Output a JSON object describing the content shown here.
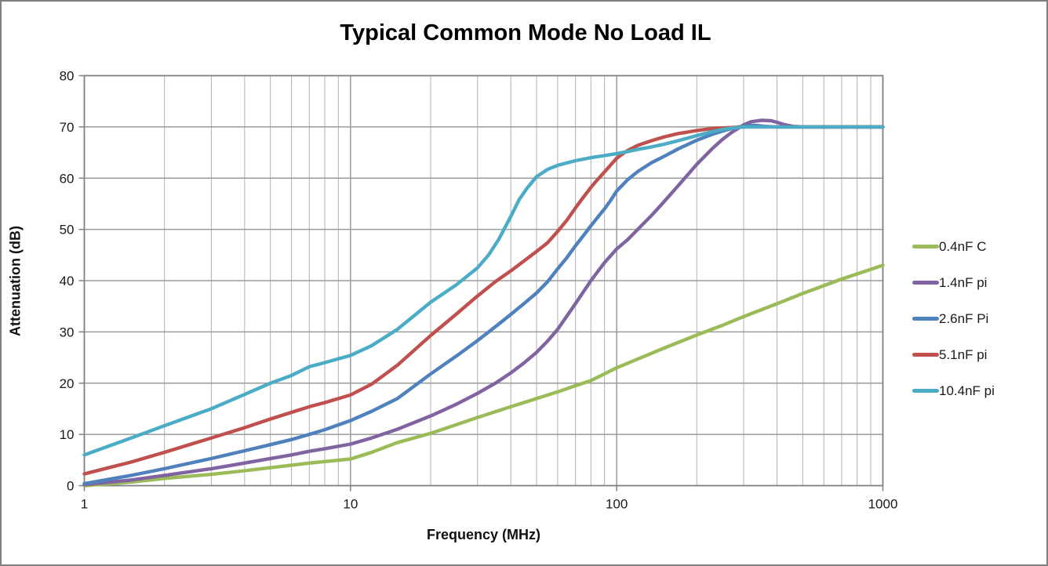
{
  "chart_data": {
    "type": "line",
    "title": "Typical Common Mode No Load IL",
    "xlabel": "Frequency (MHz)",
    "ylabel": "Attenuation (dB)",
    "x_scale": "log",
    "xlim": [
      1,
      1000
    ],
    "ylim": [
      0,
      80
    ],
    "x_ticks": [
      1,
      10,
      100,
      1000
    ],
    "y_ticks": [
      0,
      10,
      20,
      30,
      40,
      50,
      60,
      70,
      80
    ],
    "grid": "horizontal major every 10 dB; vertical log minor gridlines on",
    "legend_position": "right",
    "colors": {
      "plot_border": "#808080",
      "grid_major": "#9b9b9b",
      "grid_minor": "#b2b2b2",
      "tick_text": "#1a1a1a"
    },
    "series": [
      {
        "name": "0.4nF C",
        "color": "#9BBB59",
        "points": [
          [
            1,
            0
          ],
          [
            1.5,
            0.7
          ],
          [
            2,
            1.4
          ],
          [
            3,
            2.2
          ],
          [
            4,
            2.9
          ],
          [
            5,
            3.5
          ],
          [
            6,
            4.0
          ],
          [
            7,
            4.4
          ],
          [
            8,
            4.7
          ],
          [
            10,
            5.2
          ],
          [
            12,
            6.5
          ],
          [
            15,
            8.4
          ],
          [
            20,
            10.2
          ],
          [
            25,
            11.9
          ],
          [
            30,
            13.3
          ],
          [
            40,
            15.4
          ],
          [
            50,
            17.0
          ],
          [
            60,
            18.3
          ],
          [
            70,
            19.5
          ],
          [
            80,
            20.5
          ],
          [
            100,
            23.0
          ],
          [
            120,
            24.7
          ],
          [
            150,
            26.8
          ],
          [
            200,
            29.4
          ],
          [
            250,
            31.3
          ],
          [
            300,
            33.0
          ],
          [
            400,
            35.5
          ],
          [
            500,
            37.5
          ],
          [
            700,
            40.3
          ],
          [
            1000,
            43.0
          ]
        ]
      },
      {
        "name": "1.4nF pi",
        "color": "#8064A2",
        "points": [
          [
            1,
            0.2
          ],
          [
            1.5,
            1.1
          ],
          [
            2,
            2.0
          ],
          [
            3,
            3.3
          ],
          [
            4,
            4.4
          ],
          [
            5,
            5.3
          ],
          [
            6,
            6.0
          ],
          [
            7,
            6.7
          ],
          [
            8,
            7.2
          ],
          [
            10,
            8.1
          ],
          [
            12,
            9.3
          ],
          [
            15,
            11.0
          ],
          [
            20,
            13.6
          ],
          [
            25,
            15.9
          ],
          [
            30,
            18.0
          ],
          [
            35,
            20.0
          ],
          [
            40,
            22.0
          ],
          [
            45,
            24.0
          ],
          [
            50,
            26.0
          ],
          [
            55,
            28.2
          ],
          [
            60,
            30.5
          ],
          [
            70,
            35.5
          ],
          [
            80,
            40.0
          ],
          [
            90,
            43.5
          ],
          [
            100,
            46.2
          ],
          [
            110,
            48.0
          ],
          [
            120,
            50.0
          ],
          [
            135,
            52.7
          ],
          [
            150,
            55.3
          ],
          [
            170,
            58.5
          ],
          [
            200,
            62.7
          ],
          [
            230,
            65.9
          ],
          [
            250,
            67.6
          ],
          [
            270,
            68.9
          ],
          [
            300,
            70.4
          ],
          [
            320,
            71.0
          ],
          [
            350,
            71.3
          ],
          [
            380,
            71.2
          ],
          [
            400,
            70.9
          ],
          [
            430,
            70.4
          ],
          [
            460,
            70.1
          ],
          [
            500,
            70
          ],
          [
            600,
            70
          ],
          [
            700,
            70
          ],
          [
            850,
            70
          ],
          [
            1000,
            70
          ]
        ]
      },
      {
        "name": "2.6nF Pi",
        "color": "#4F81BD",
        "points": [
          [
            1,
            0.4
          ],
          [
            1.5,
            2.0
          ],
          [
            2,
            3.3
          ],
          [
            3,
            5.3
          ],
          [
            4,
            6.8
          ],
          [
            5,
            8.0
          ],
          [
            6,
            9.0
          ],
          [
            7,
            10.0
          ],
          [
            8,
            10.9
          ],
          [
            10,
            12.7
          ],
          [
            12,
            14.5
          ],
          [
            15,
            17.0
          ],
          [
            20,
            21.8
          ],
          [
            25,
            25.3
          ],
          [
            30,
            28.3
          ],
          [
            35,
            31.0
          ],
          [
            40,
            33.4
          ],
          [
            45,
            35.6
          ],
          [
            50,
            37.6
          ],
          [
            55,
            39.8
          ],
          [
            60,
            42.3
          ],
          [
            65,
            44.5
          ],
          [
            70,
            46.8
          ],
          [
            75,
            48.8
          ],
          [
            80,
            50.7
          ],
          [
            85,
            52.4
          ],
          [
            90,
            54.0
          ],
          [
            95,
            55.7
          ],
          [
            100,
            57.5
          ],
          [
            110,
            59.7
          ],
          [
            120,
            61.3
          ],
          [
            135,
            63.0
          ],
          [
            150,
            64.2
          ],
          [
            170,
            65.7
          ],
          [
            200,
            67.4
          ],
          [
            230,
            68.6
          ],
          [
            250,
            69.2
          ],
          [
            275,
            69.8
          ],
          [
            300,
            70.2
          ],
          [
            330,
            70.3
          ],
          [
            360,
            70.1
          ],
          [
            400,
            70
          ],
          [
            500,
            70
          ],
          [
            700,
            70
          ],
          [
            1000,
            70
          ]
        ]
      },
      {
        "name": "5.1nF pi",
        "color": "#C0504D",
        "points": [
          [
            1,
            2.3
          ],
          [
            1.5,
            4.6
          ],
          [
            2,
            6.5
          ],
          [
            3,
            9.3
          ],
          [
            4,
            11.3
          ],
          [
            5,
            13.0
          ],
          [
            6,
            14.3
          ],
          [
            7,
            15.4
          ],
          [
            8,
            16.2
          ],
          [
            10,
            17.7
          ],
          [
            12,
            19.8
          ],
          [
            15,
            23.5
          ],
          [
            20,
            29.3
          ],
          [
            25,
            33.5
          ],
          [
            30,
            37.0
          ],
          [
            35,
            39.8
          ],
          [
            40,
            41.9
          ],
          [
            45,
            43.9
          ],
          [
            50,
            45.7
          ],
          [
            55,
            47.4
          ],
          [
            60,
            49.6
          ],
          [
            65,
            51.8
          ],
          [
            70,
            54.2
          ],
          [
            75,
            56.3
          ],
          [
            80,
            58.2
          ],
          [
            85,
            59.8
          ],
          [
            90,
            61.2
          ],
          [
            95,
            62.6
          ],
          [
            100,
            63.9
          ],
          [
            105,
            64.7
          ],
          [
            110,
            65.4
          ],
          [
            120,
            66.4
          ],
          [
            135,
            67.3
          ],
          [
            150,
            68.0
          ],
          [
            170,
            68.7
          ],
          [
            200,
            69.3
          ],
          [
            230,
            69.7
          ],
          [
            250,
            69.8
          ],
          [
            300,
            70
          ],
          [
            400,
            70
          ],
          [
            500,
            70
          ],
          [
            700,
            70
          ],
          [
            1000,
            70
          ]
        ]
      },
      {
        "name": "10.4nF pi",
        "color": "#4BACC6",
        "points": [
          [
            1,
            6.0
          ],
          [
            1.5,
            9.3
          ],
          [
            2,
            11.7
          ],
          [
            3,
            15.0
          ],
          [
            4,
            17.8
          ],
          [
            5,
            20.0
          ],
          [
            6,
            21.5
          ],
          [
            7,
            23.2
          ],
          [
            8,
            24.0
          ],
          [
            10,
            25.4
          ],
          [
            12,
            27.3
          ],
          [
            15,
            30.5
          ],
          [
            20,
            35.8
          ],
          [
            25,
            39.2
          ],
          [
            30,
            42.5
          ],
          [
            33,
            45.0
          ],
          [
            36,
            48.0
          ],
          [
            40,
            52.5
          ],
          [
            43,
            55.8
          ],
          [
            46,
            58.0
          ],
          [
            50,
            60.3
          ],
          [
            55,
            61.7
          ],
          [
            60,
            62.5
          ],
          [
            70,
            63.4
          ],
          [
            80,
            64.0
          ],
          [
            90,
            64.4
          ],
          [
            100,
            64.8
          ],
          [
            110,
            65.2
          ],
          [
            120,
            65.6
          ],
          [
            135,
            66.1
          ],
          [
            150,
            66.6
          ],
          [
            170,
            67.3
          ],
          [
            200,
            68.3
          ],
          [
            230,
            69.1
          ],
          [
            250,
            69.5
          ],
          [
            275,
            69.8
          ],
          [
            300,
            70
          ],
          [
            350,
            70
          ],
          [
            400,
            70
          ],
          [
            500,
            70
          ],
          [
            700,
            70
          ],
          [
            1000,
            70
          ]
        ]
      }
    ]
  }
}
